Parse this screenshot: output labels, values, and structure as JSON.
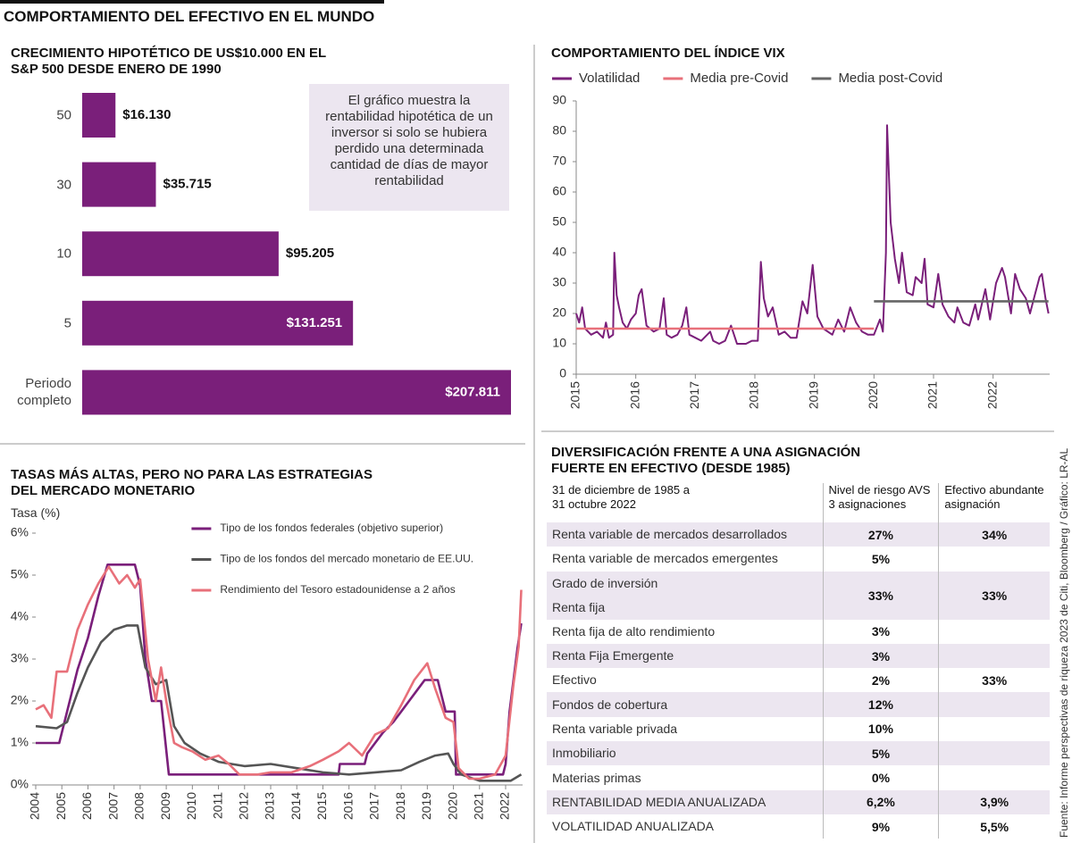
{
  "header": {
    "title": "COMPORTAMIENTO DEL EFECTIVO EN EL MUNDO"
  },
  "source": "Fuente: Informe perspectivas de riqueza 2023 de Citi, Bloomberg / Gráfico: LR-AL",
  "chart_data": [
    {
      "type": "bar",
      "orientation": "horizontal",
      "title": "CRECIMIENTO HIPOTÉTICO DE US$10.000 EN EL S&P 500 DESDE ENERO DE 1990",
      "annotation": "El gráfico muestra la rentabilidad hipotética de un inversor si solo se hubiera perdido una determinada cantidad de días de mayor rentabilidad",
      "categories": [
        "50",
        "30",
        "10",
        "5",
        "Periodo completo"
      ],
      "values": [
        16130,
        35715,
        95205,
        131251,
        207811
      ],
      "value_labels": [
        "$16.130",
        "$35.715",
        "$95.205",
        "$131.251",
        "$207.811"
      ],
      "color": "#7a1f7a"
    },
    {
      "type": "line",
      "title": "COMPORTAMIENTO DEL ÍNDICE VIX",
      "legend": "top",
      "xlim": [
        2015,
        2022.95
      ],
      "xticks": [
        2015,
        2016,
        2017,
        2018,
        2019,
        2020,
        2021,
        2022
      ],
      "ylim": [
        0,
        90
      ],
      "yticks": [
        0,
        10,
        20,
        30,
        40,
        50,
        60,
        70,
        80,
        90
      ],
      "series": [
        {
          "name": "Volatilidad",
          "color": "#7a1f7a",
          "x": [
            2015.0,
            2015.05,
            2015.1,
            2015.15,
            2015.25,
            2015.35,
            2015.45,
            2015.5,
            2015.55,
            2015.62,
            2015.64,
            2015.68,
            2015.72,
            2015.78,
            2015.85,
            2015.92,
            2016.0,
            2016.05,
            2016.1,
            2016.18,
            2016.3,
            2016.4,
            2016.47,
            2016.52,
            2016.6,
            2016.7,
            2016.78,
            2016.85,
            2016.9,
            2017.0,
            2017.1,
            2017.25,
            2017.3,
            2017.4,
            2017.5,
            2017.6,
            2017.7,
            2017.85,
            2017.95,
            2018.05,
            2018.1,
            2018.15,
            2018.22,
            2018.3,
            2018.4,
            2018.5,
            2018.6,
            2018.7,
            2018.8,
            2018.88,
            2018.97,
            2019.05,
            2019.15,
            2019.3,
            2019.4,
            2019.5,
            2019.6,
            2019.7,
            2019.8,
            2019.9,
            2020.0,
            2020.1,
            2020.15,
            2020.2,
            2020.22,
            2020.28,
            2020.35,
            2020.42,
            2020.47,
            2020.55,
            2020.65,
            2020.7,
            2020.8,
            2020.85,
            2020.9,
            2021.0,
            2021.08,
            2021.15,
            2021.25,
            2021.35,
            2021.4,
            2021.5,
            2021.6,
            2021.7,
            2021.75,
            2021.87,
            2021.95,
            2022.05,
            2022.15,
            2022.2,
            2022.3,
            2022.37,
            2022.45,
            2022.55,
            2022.62,
            2022.7,
            2022.78,
            2022.82,
            2022.88,
            2022.93
          ],
          "values": [
            20,
            17,
            22,
            15,
            13,
            14,
            12,
            17,
            12,
            13,
            40,
            26,
            22,
            17,
            15,
            18,
            20,
            26,
            28,
            16,
            14,
            15,
            25,
            13,
            12,
            13,
            16,
            22,
            13,
            12,
            11,
            14,
            11,
            10,
            11,
            16,
            10,
            10,
            11,
            11,
            37,
            25,
            19,
            22,
            13,
            14,
            12,
            12,
            24,
            20,
            36,
            19,
            15,
            13,
            18,
            14,
            22,
            17,
            14,
            13,
            13,
            18,
            14,
            40,
            82,
            50,
            38,
            30,
            40,
            27,
            26,
            32,
            30,
            38,
            23,
            22,
            33,
            23,
            19,
            17,
            22,
            17,
            16,
            23,
            18,
            28,
            18,
            30,
            35,
            32,
            20,
            33,
            28,
            25,
            20,
            26,
            32,
            33,
            25,
            20
          ]
        },
        {
          "name": "Media pre-Covid",
          "color": "#e8707a",
          "x": [
            2015,
            2020
          ],
          "values": [
            15,
            15
          ]
        },
        {
          "name": "Media post-Covid",
          "color": "#666666",
          "x": [
            2020,
            2022.93
          ],
          "values": [
            24,
            24
          ]
        }
      ]
    },
    {
      "type": "line",
      "title": "TASAS MÁS ALTAS, PERO NO PARA LAS ESTRATEGIAS DEL MERCADO MONETARIO",
      "y_label": "Tasa (%)",
      "legend": "upper center",
      "xlim": [
        2004,
        2022.65
      ],
      "xticks": [
        2004,
        2005,
        2006,
        2007,
        2008,
        2009,
        2010,
        2011,
        2012,
        2013,
        2014,
        2015,
        2016,
        2017,
        2018,
        2019,
        2020,
        2021,
        2022
      ],
      "ylim": [
        0,
        6
      ],
      "yticks": [
        {
          "value": 0,
          "label": "0%"
        },
        {
          "value": 1,
          "label": "1%"
        },
        {
          "value": 2,
          "label": "2%"
        },
        {
          "value": 3,
          "label": "3%"
        },
        {
          "value": 4,
          "label": "4%"
        },
        {
          "value": 5,
          "label": "5%"
        },
        {
          "value": 6,
          "label": "6%"
        }
      ],
      "series": [
        {
          "name": "Tipo de los fondos federales (objetivo superior)",
          "color": "#7a1f7a",
          "x": [
            2004.0,
            2004.9,
            2005.2,
            2005.6,
            2006.0,
            2006.4,
            2006.75,
            2007.8,
            2008.0,
            2008.2,
            2008.45,
            2008.8,
            2009.1,
            2015.6,
            2015.65,
            2016.6,
            2016.7,
            2017.0,
            2017.3,
            2017.7,
            2018.0,
            2018.3,
            2018.6,
            2018.9,
            2019.4,
            2019.5,
            2019.7,
            2020.05,
            2020.1,
            2021.9,
            2022.0,
            2022.15,
            2022.3,
            2022.45,
            2022.6
          ],
          "values": [
            1.0,
            1.0,
            1.75,
            2.75,
            3.5,
            4.5,
            5.25,
            5.25,
            4.75,
            3.0,
            2.0,
            2.0,
            0.25,
            0.25,
            0.5,
            0.5,
            0.75,
            1.0,
            1.25,
            1.5,
            1.75,
            2.0,
            2.25,
            2.5,
            2.5,
            2.25,
            1.75,
            1.75,
            0.25,
            0.25,
            0.5,
            1.75,
            2.5,
            3.25,
            3.85
          ]
        },
        {
          "name": "Tipo de los fondos del mercado monetario de EE.UU.",
          "color": "#555555",
          "x": [
            2004.0,
            2004.8,
            2005.2,
            2005.6,
            2006.0,
            2006.5,
            2007.0,
            2007.5,
            2007.9,
            2008.2,
            2008.6,
            2009.0,
            2009.3,
            2009.7,
            2010.3,
            2011.0,
            2012.0,
            2013.0,
            2014.0,
            2015.0,
            2016.0,
            2017.0,
            2018.0,
            2018.7,
            2019.3,
            2019.8,
            2020.0,
            2020.3,
            2021.0,
            2022.2,
            2022.6
          ],
          "values": [
            1.4,
            1.35,
            1.5,
            2.2,
            2.8,
            3.4,
            3.7,
            3.8,
            3.8,
            2.8,
            2.4,
            2.5,
            1.4,
            1.0,
            0.75,
            0.55,
            0.45,
            0.5,
            0.4,
            0.3,
            0.25,
            0.3,
            0.35,
            0.55,
            0.7,
            0.75,
            0.5,
            0.25,
            0.1,
            0.1,
            0.25
          ]
        },
        {
          "name": "Rendimiento del Tesoro estadounidense a 2 años",
          "color": "#e8707a",
          "x": [
            2004.0,
            2004.3,
            2004.6,
            2004.8,
            2005.2,
            2005.6,
            2006.0,
            2006.4,
            2006.8,
            2007.2,
            2007.5,
            2007.8,
            2008.0,
            2008.3,
            2008.6,
            2008.8,
            2009.0,
            2009.3,
            2009.6,
            2010.0,
            2010.5,
            2011.0,
            2011.4,
            2011.8,
            2012.5,
            2013.0,
            2013.8,
            2014.5,
            2015.0,
            2015.6,
            2016.0,
            2016.5,
            2017.0,
            2017.5,
            2018.0,
            2018.5,
            2019.0,
            2019.3,
            2019.7,
            2020.0,
            2020.2,
            2020.6,
            2021.0,
            2021.6,
            2022.0,
            2022.3,
            2022.5,
            2022.6
          ],
          "values": [
            1.8,
            1.9,
            1.6,
            2.7,
            2.7,
            3.7,
            4.3,
            4.8,
            5.2,
            4.8,
            5.0,
            4.7,
            4.9,
            3.0,
            2.0,
            2.8,
            2.0,
            1.0,
            0.9,
            0.8,
            0.6,
            0.7,
            0.5,
            0.25,
            0.25,
            0.3,
            0.3,
            0.45,
            0.6,
            0.8,
            1.0,
            0.7,
            1.2,
            1.35,
            1.9,
            2.5,
            2.9,
            2.3,
            1.6,
            1.5,
            0.4,
            0.15,
            0.15,
            0.25,
            0.7,
            2.4,
            3.3,
            4.65
          ]
        }
      ]
    }
  ],
  "table": {
    "title": "DIVERSIFICACIÓN FRENTE A UNA ASIGNACIÓN FUERTE EN EFECTIVO (DESDE 1985)",
    "columns": [
      [
        "31 de diciembre de 1985 a",
        "31 octubre 2022"
      ],
      [
        "Nivel de riesgo AVS",
        "3 asignaciones"
      ],
      [
        "Efectivo abundante",
        "asignación"
      ]
    ],
    "rows": [
      [
        [
          "Renta variable de mercados desarrollados"
        ],
        "27%",
        "34%"
      ],
      [
        [
          "Renta variable de mercados emergentes"
        ],
        "5%",
        null
      ],
      [
        [
          "Grado de inversión",
          "Renta fija"
        ],
        "33%",
        "33%"
      ],
      [
        [
          "Renta fija de alto rendimiento"
        ],
        "3%",
        null
      ],
      [
        [
          "Renta Fija Emergente"
        ],
        "3%",
        null
      ],
      [
        [
          "Efectivo"
        ],
        "2%",
        "33%"
      ],
      [
        [
          "Fondos de cobertura"
        ],
        "12%",
        null
      ],
      [
        [
          "Renta variable privada"
        ],
        "10%",
        null
      ],
      [
        [
          "Inmobiliario"
        ],
        "5%",
        null
      ],
      [
        [
          "Materias primas"
        ],
        "0%",
        null
      ],
      [
        [
          "RENTABILIDAD MEDIA ANUALIZADA"
        ],
        "6,2%",
        "3,9%"
      ],
      [
        [
          "VOLATILIDAD ANUALIZADA"
        ],
        "9%",
        "5,5%"
      ]
    ]
  }
}
